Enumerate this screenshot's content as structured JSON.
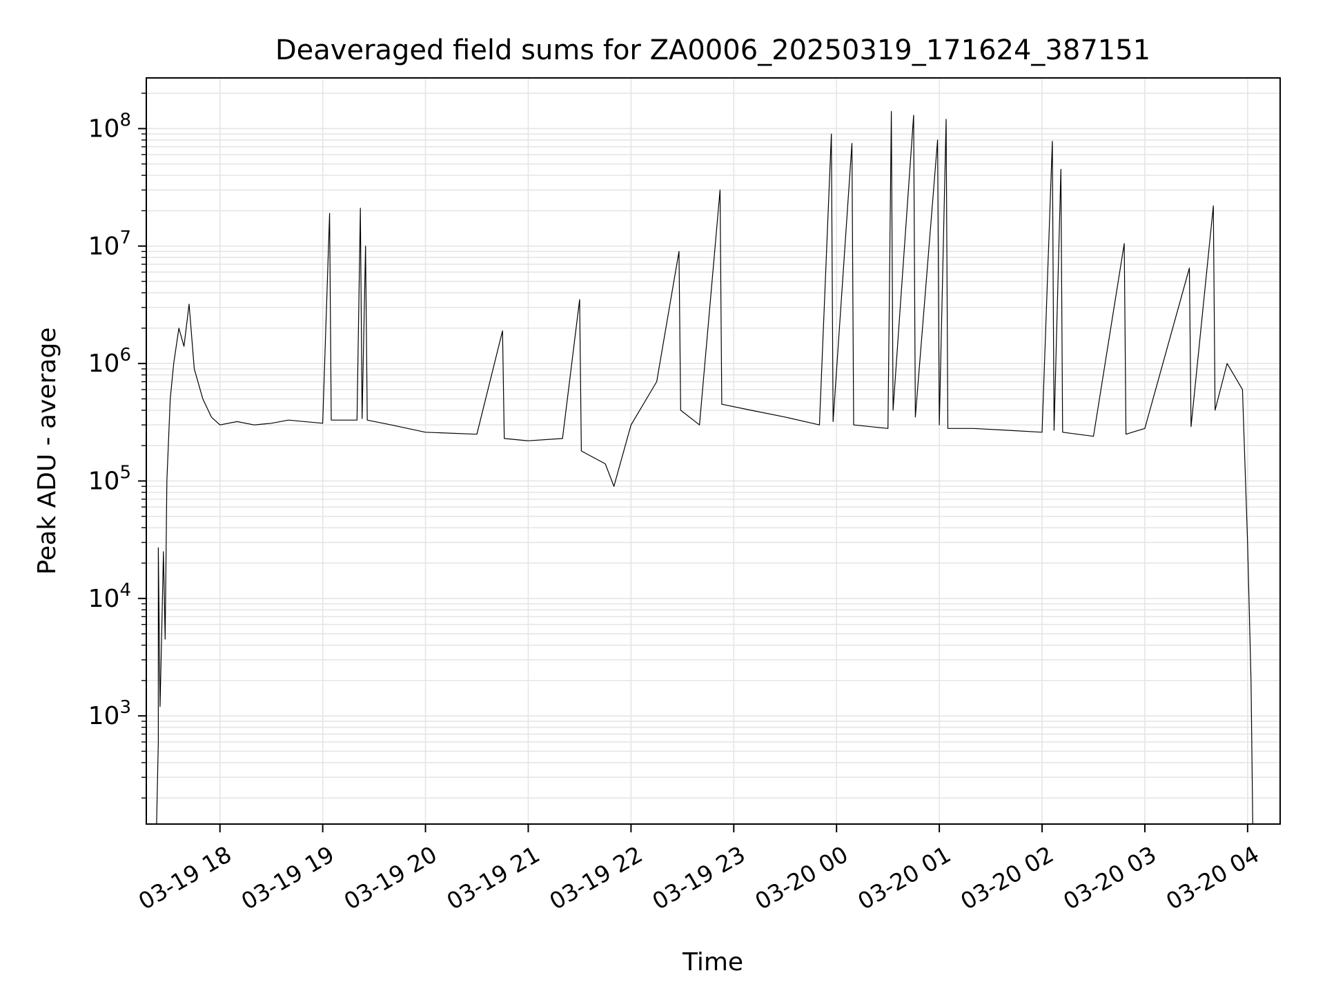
{
  "chart_data": {
    "type": "line",
    "title": "Deaveraged field sums for ZA0006_20250319_171624_387151",
    "xlabel": "Time",
    "ylabel": "Peak ADU - average",
    "yscale": "log",
    "grid": true,
    "grid_color": "#e5e5e5",
    "line_color": "#000000",
    "xlim": [
      "2025-03-19T17:17",
      "2025-03-20T04:19"
    ],
    "ylim": [
      120,
      270000000
    ],
    "x_ticks": [
      {
        "value": "2025-03-19T18:00",
        "label": "03-19 18"
      },
      {
        "value": "2025-03-19T19:00",
        "label": "03-19 19"
      },
      {
        "value": "2025-03-19T20:00",
        "label": "03-19 20"
      },
      {
        "value": "2025-03-19T21:00",
        "label": "03-19 21"
      },
      {
        "value": "2025-03-19T22:00",
        "label": "03-19 22"
      },
      {
        "value": "2025-03-19T23:00",
        "label": "03-19 23"
      },
      {
        "value": "2025-03-20T00:00",
        "label": "03-20 00"
      },
      {
        "value": "2025-03-20T01:00",
        "label": "03-20 01"
      },
      {
        "value": "2025-03-20T02:00",
        "label": "03-20 02"
      },
      {
        "value": "2025-03-20T03:00",
        "label": "03-20 03"
      },
      {
        "value": "2025-03-20T04:00",
        "label": "03-20 04"
      }
    ],
    "y_ticks": [
      {
        "value": 1000,
        "base": "10",
        "exp": "3"
      },
      {
        "value": 10000,
        "base": "10",
        "exp": "4"
      },
      {
        "value": 100000,
        "base": "10",
        "exp": "5"
      },
      {
        "value": 1000000,
        "base": "10",
        "exp": "6"
      },
      {
        "value": 10000000,
        "base": "10",
        "exp": "7"
      },
      {
        "value": 100000000,
        "base": "10",
        "exp": "8"
      }
    ],
    "series": [
      {
        "points": [
          [
            "2025-03-19T17:23",
            120
          ],
          [
            "2025-03-19T17:24",
            600
          ],
          [
            "2025-03-19T17:24",
            27000
          ],
          [
            "2025-03-19T17:25",
            1200
          ],
          [
            "2025-03-19T17:26",
            5000
          ],
          [
            "2025-03-19T17:27",
            25000
          ],
          [
            "2025-03-19T17:28",
            4500
          ],
          [
            "2025-03-19T17:29",
            100000
          ],
          [
            "2025-03-19T17:31",
            500000
          ],
          [
            "2025-03-19T17:33",
            1000000
          ],
          [
            "2025-03-19T17:36",
            2000000
          ],
          [
            "2025-03-19T17:39",
            1400000
          ],
          [
            "2025-03-19T17:42",
            3200000
          ],
          [
            "2025-03-19T17:45",
            900000
          ],
          [
            "2025-03-19T17:50",
            500000
          ],
          [
            "2025-03-19T17:55",
            350000
          ],
          [
            "2025-03-19T18:00",
            300000
          ],
          [
            "2025-03-19T18:10",
            320000
          ],
          [
            "2025-03-19T18:20",
            300000
          ],
          [
            "2025-03-19T18:30",
            310000
          ],
          [
            "2025-03-19T18:40",
            330000
          ],
          [
            "2025-03-19T19:00",
            310000
          ],
          [
            "2025-03-19T19:04",
            19000000
          ],
          [
            "2025-03-19T19:05",
            330000
          ],
          [
            "2025-03-19T19:20",
            330000
          ],
          [
            "2025-03-19T19:22",
            21000000
          ],
          [
            "2025-03-19T19:23",
            340000
          ],
          [
            "2025-03-19T19:25",
            10000000
          ],
          [
            "2025-03-19T19:26",
            330000
          ],
          [
            "2025-03-19T19:40",
            300000
          ],
          [
            "2025-03-19T20:00",
            260000
          ],
          [
            "2025-03-19T20:30",
            250000
          ],
          [
            "2025-03-19T20:45",
            1900000
          ],
          [
            "2025-03-19T20:46",
            230000
          ],
          [
            "2025-03-19T21:00",
            220000
          ],
          [
            "2025-03-19T21:20",
            230000
          ],
          [
            "2025-03-19T21:30",
            3500000
          ],
          [
            "2025-03-19T21:31",
            180000
          ],
          [
            "2025-03-19T21:45",
            140000
          ],
          [
            "2025-03-19T21:50",
            90000
          ],
          [
            "2025-03-19T22:00",
            300000
          ],
          [
            "2025-03-19T22:15",
            700000
          ],
          [
            "2025-03-19T22:28",
            9000000
          ],
          [
            "2025-03-19T22:29",
            400000
          ],
          [
            "2025-03-19T22:40",
            300000
          ],
          [
            "2025-03-19T22:52",
            30000000
          ],
          [
            "2025-03-19T22:53",
            450000
          ],
          [
            "2025-03-19T23:10",
            400000
          ],
          [
            "2025-03-19T23:30",
            350000
          ],
          [
            "2025-03-19T23:50",
            300000
          ],
          [
            "2025-03-19T23:57",
            90000000
          ],
          [
            "2025-03-19T23:58",
            320000
          ],
          [
            "2025-03-20T00:09",
            75000000
          ],
          [
            "2025-03-20T00:10",
            300000
          ],
          [
            "2025-03-20T00:30",
            280000
          ],
          [
            "2025-03-20T00:32",
            140000000
          ],
          [
            "2025-03-20T00:33",
            400000
          ],
          [
            "2025-03-20T00:45",
            130000000
          ],
          [
            "2025-03-20T00:46",
            350000
          ],
          [
            "2025-03-20T00:59",
            80000000
          ],
          [
            "2025-03-20T01:00",
            300000
          ],
          [
            "2025-03-20T01:04",
            120000000
          ],
          [
            "2025-03-20T01:05",
            280000
          ],
          [
            "2025-03-20T01:20",
            280000
          ],
          [
            "2025-03-20T01:40",
            270000
          ],
          [
            "2025-03-20T02:00",
            260000
          ],
          [
            "2025-03-20T02:06",
            78000000
          ],
          [
            "2025-03-20T02:07",
            270000
          ],
          [
            "2025-03-20T02:11",
            45000000
          ],
          [
            "2025-03-20T02:12",
            260000
          ],
          [
            "2025-03-20T02:30",
            240000
          ],
          [
            "2025-03-20T02:48",
            10500000
          ],
          [
            "2025-03-20T02:49",
            250000
          ],
          [
            "2025-03-20T03:00",
            280000
          ],
          [
            "2025-03-20T03:26",
            6500000
          ],
          [
            "2025-03-20T03:27",
            290000
          ],
          [
            "2025-03-20T03:40",
            22000000
          ],
          [
            "2025-03-20T03:41",
            400000
          ],
          [
            "2025-03-20T03:48",
            1000000
          ],
          [
            "2025-03-20T03:52",
            800000
          ],
          [
            "2025-03-20T03:57",
            600000
          ],
          [
            "2025-03-20T04:00",
            30000
          ],
          [
            "2025-03-20T04:02",
            2000
          ],
          [
            "2025-03-20T04:03",
            120
          ]
        ]
      }
    ]
  }
}
